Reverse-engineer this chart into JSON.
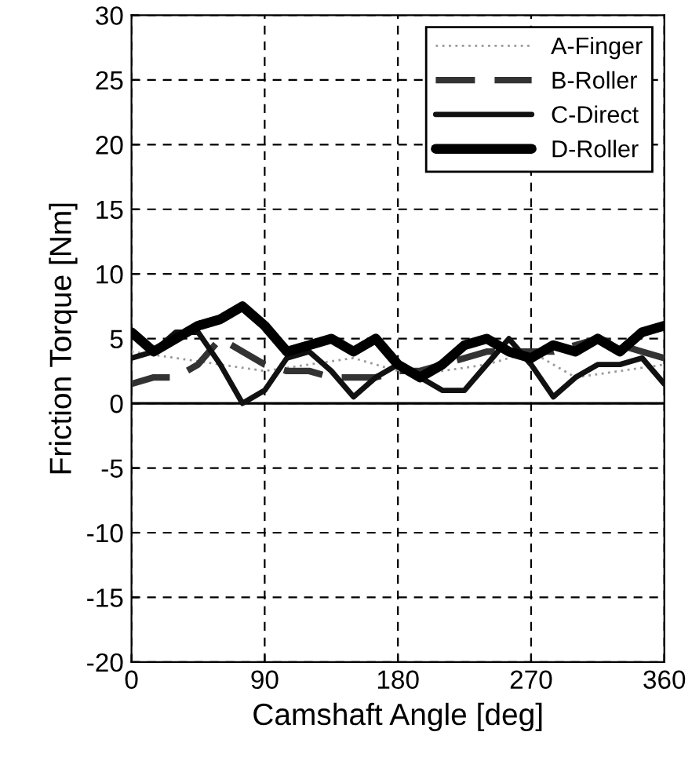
{
  "chart_data": {
    "type": "line",
    "xlabel": "Camshaft Angle [deg]",
    "ylabel": "Friction Torque [Nm]",
    "xlim": [
      0,
      360
    ],
    "xticks": [
      0,
      90,
      180,
      270,
      360
    ],
    "ylim": [
      -20,
      30
    ],
    "yticks": [
      -20,
      -15,
      -10,
      -5,
      0,
      5,
      10,
      15,
      20,
      25,
      30
    ],
    "grid": true,
    "legend": "top right",
    "marker": "none",
    "ref_lines": [
      {
        "axis": "y",
        "value": 0,
        "color": "#000000",
        "line_style": "solid"
      }
    ],
    "series": [
      {
        "name": "A-Finger",
        "color": "#999999",
        "line_style": "dotted",
        "x": [
          0,
          30,
          60,
          90,
          120,
          150,
          180,
          210,
          240,
          270,
          300,
          330,
          360
        ],
        "values": [
          4,
          3.5,
          3,
          2.5,
          3,
          3.5,
          2.5,
          2.5,
          3,
          4,
          2,
          2.5,
          3
        ]
      },
      {
        "name": "B-Roller",
        "color": "#333333",
        "line_style": "dashed",
        "x": [
          0,
          15,
          30,
          45,
          60,
          75,
          90,
          105,
          120,
          135,
          150,
          165,
          180,
          195,
          210,
          225,
          240,
          255,
          270,
          285,
          300,
          315,
          330,
          345,
          360
        ],
        "values": [
          1.5,
          2,
          2,
          3,
          5,
          4,
          3,
          2.5,
          2.5,
          2,
          2,
          2,
          2.5,
          2.5,
          3,
          3.5,
          4,
          4,
          4,
          4,
          4.5,
          5,
          4.5,
          4,
          3.5
        ]
      },
      {
        "name": "C-Direct",
        "color": "#111111",
        "line_style": "solid",
        "x": [
          0,
          15,
          30,
          45,
          60,
          75,
          90,
          105,
          120,
          135,
          150,
          165,
          180,
          195,
          210,
          225,
          240,
          255,
          270,
          285,
          300,
          315,
          330,
          345,
          360
        ],
        "values": [
          3.5,
          4,
          5.5,
          5.5,
          3,
          0,
          1,
          3.5,
          4,
          2.5,
          0.5,
          2,
          3,
          2,
          1,
          1,
          3,
          5,
          3,
          0.5,
          2,
          3,
          3,
          3.5,
          1.5
        ]
      },
      {
        "name": "D-Roller",
        "color": "#000000",
        "line_style": "solid",
        "x": [
          0,
          15,
          30,
          45,
          60,
          75,
          90,
          105,
          120,
          135,
          150,
          165,
          180,
          195,
          210,
          225,
          240,
          255,
          270,
          285,
          300,
          315,
          330,
          345,
          360
        ],
        "values": [
          5.5,
          4,
          5,
          6,
          6.5,
          7.5,
          6,
          4,
          4.5,
          5,
          4,
          5,
          3,
          2,
          3,
          4.5,
          5,
          4,
          3.5,
          4.5,
          4,
          5,
          4,
          5.5,
          6
        ]
      }
    ]
  }
}
